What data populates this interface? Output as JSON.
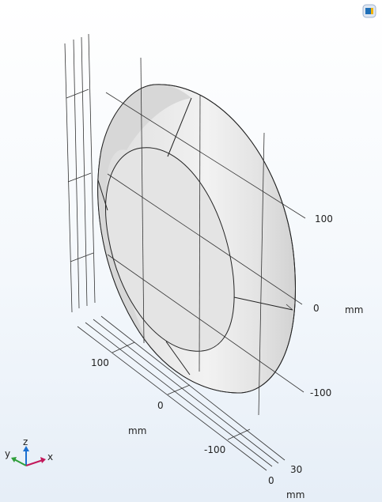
{
  "toolbar": {
    "view_icon": "zoom-extents-icon"
  },
  "axes": {
    "right_ticks": [
      "100",
      "0",
      "-100"
    ],
    "right_unit": "mm",
    "bottom_ticks": [
      "100",
      "0",
      "-100"
    ],
    "bottom_unit": "mm",
    "depth_ticks": [
      "30",
      "0"
    ],
    "depth_unit": "mm"
  },
  "triad": {
    "z": "z",
    "y": "y",
    "x": "x"
  },
  "colors": {
    "outer_face": "#e9e9e9",
    "inner_face": "#e2e2e2",
    "triad_x": "#c2185b",
    "triad_y": "#2e9e3a",
    "triad_z": "#1a6fd0"
  }
}
